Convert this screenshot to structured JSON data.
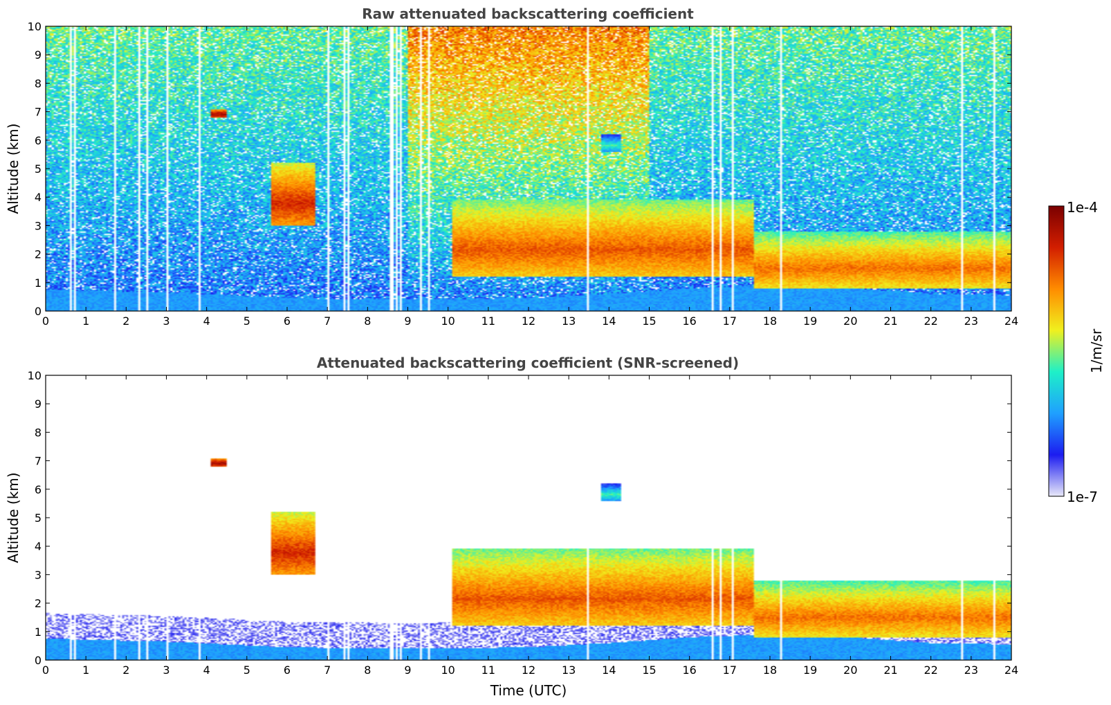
{
  "chart_data": [
    {
      "type": "heatmap",
      "title": "Raw attenuated backscattering coefficient",
      "xlabel": "",
      "ylabel": "Altitude (km)",
      "xlim": [
        0,
        24
      ],
      "ylim": [
        0,
        10
      ],
      "x_ticks": [
        "0",
        "1",
        "2",
        "3",
        "4",
        "5",
        "6",
        "7",
        "8",
        "9",
        "10",
        "11",
        "12",
        "13",
        "14",
        "15",
        "16",
        "17",
        "18",
        "19",
        "20",
        "21",
        "22",
        "23",
        "24"
      ],
      "y_ticks": [
        "0",
        "1",
        "2",
        "3",
        "4",
        "5",
        "6",
        "7",
        "8",
        "9",
        "10"
      ],
      "screened": false,
      "background_noise": true,
      "boundary_layer_top_km": [
        [
          0,
          0.75
        ],
        [
          3,
          0.65
        ],
        [
          6,
          0.45
        ],
        [
          9,
          0.4
        ],
        [
          12,
          0.45
        ],
        [
          14,
          0.6
        ],
        [
          16,
          0.8
        ],
        [
          18,
          0.9
        ],
        [
          20,
          0.8
        ],
        [
          22,
          0.6
        ],
        [
          24,
          0.55
        ]
      ],
      "cloud_layers": [
        {
          "t0": 5.6,
          "t1": 6.7,
          "base_km": 3.0,
          "top_km": 5.2,
          "peak_log10": -4.3
        },
        {
          "t0": 10.1,
          "t1": 17.6,
          "base_km": 1.2,
          "top_km": 3.9,
          "peak_log10": -4.5
        },
        {
          "t0": 17.6,
          "t1": 24.0,
          "base_km": 0.8,
          "top_km": 2.8,
          "peak_log10": -4.6
        },
        {
          "t0": 4.1,
          "t1": 4.5,
          "base_km": 6.8,
          "top_km": 7.1,
          "peak_log10": -4.0
        },
        {
          "t0": 13.8,
          "t1": 14.3,
          "base_km": 5.6,
          "top_km": 6.2,
          "peak_log10": -5.5
        }
      ],
      "invalid_profile_times": [
        0.6,
        0.72,
        1.72,
        2.3,
        2.5,
        3.0,
        3.8,
        7.0,
        7.4,
        7.5,
        8.55,
        8.6,
        8.7,
        8.8,
        9.3,
        9.5,
        13.5,
        16.6,
        16.8,
        17.1,
        18.3,
        22.8,
        23.6
      ]
    },
    {
      "type": "heatmap",
      "title": "Attenuated backscattering coefficient (SNR-screened)",
      "xlabel": "Time (UTC)",
      "ylabel": "Altitude (km)",
      "xlim": [
        0,
        24
      ],
      "ylim": [
        0,
        10
      ],
      "x_ticks": [
        "0",
        "1",
        "2",
        "3",
        "4",
        "5",
        "6",
        "7",
        "8",
        "9",
        "10",
        "11",
        "12",
        "13",
        "14",
        "15",
        "16",
        "17",
        "18",
        "19",
        "20",
        "21",
        "22",
        "23",
        "24"
      ],
      "y_ticks": [
        "0",
        "1",
        "2",
        "3",
        "4",
        "5",
        "6",
        "7",
        "8",
        "9",
        "10"
      ],
      "screened": true,
      "background_noise": false,
      "boundary_layer_top_km": [
        [
          0,
          0.75
        ],
        [
          3,
          0.65
        ],
        [
          6,
          0.45
        ],
        [
          9,
          0.4
        ],
        [
          12,
          0.45
        ],
        [
          14,
          0.6
        ],
        [
          16,
          0.8
        ],
        [
          18,
          0.9
        ],
        [
          20,
          0.8
        ],
        [
          22,
          0.6
        ],
        [
          24,
          0.55
        ]
      ],
      "cloud_layers": [
        {
          "t0": 5.6,
          "t1": 6.7,
          "base_km": 3.0,
          "top_km": 5.2,
          "peak_log10": -4.3
        },
        {
          "t0": 10.1,
          "t1": 17.6,
          "base_km": 1.2,
          "top_km": 3.9,
          "peak_log10": -4.5
        },
        {
          "t0": 17.6,
          "t1": 24.0,
          "base_km": 0.8,
          "top_km": 2.8,
          "peak_log10": -4.6
        },
        {
          "t0": 4.1,
          "t1": 4.5,
          "base_km": 6.8,
          "top_km": 7.1,
          "peak_log10": -4.0
        },
        {
          "t0": 13.8,
          "t1": 14.3,
          "base_km": 5.6,
          "top_km": 6.2,
          "peak_log10": -5.5
        }
      ],
      "invalid_profile_times": [
        0.6,
        0.72,
        1.72,
        2.3,
        2.5,
        3.0,
        3.8,
        7.0,
        7.4,
        7.5,
        8.55,
        8.6,
        8.7,
        8.8,
        9.3,
        9.5,
        13.5,
        16.6,
        16.8,
        17.1,
        18.3,
        22.8,
        23.6
      ]
    }
  ],
  "colorbar": {
    "label": "1/m/sr",
    "max_label": "1e-4",
    "min_label": "1e-7",
    "range_log10": [
      -7,
      -4
    ],
    "colormap": [
      "#e8e8f8",
      "#1c1cf0",
      "#1fa0ff",
      "#1ef0c8",
      "#f0f01e",
      "#ff8c00",
      "#d21e00",
      "#7a0000"
    ]
  }
}
